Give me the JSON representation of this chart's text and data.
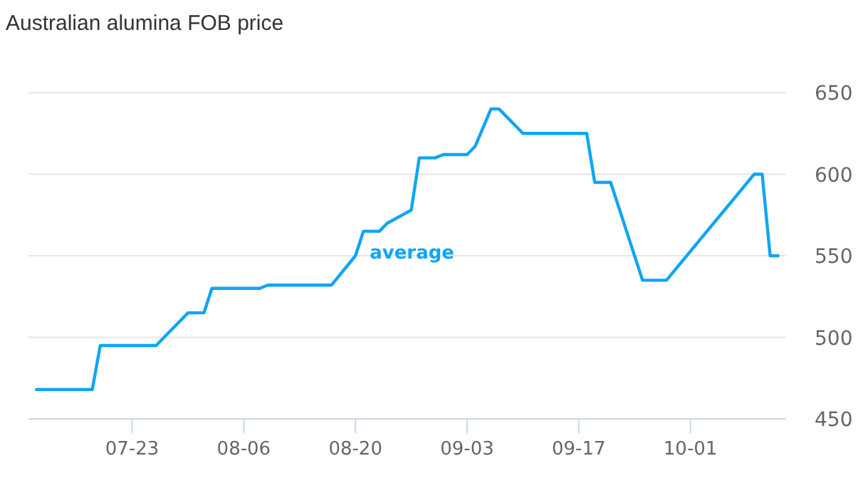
{
  "chart_data": {
    "type": "line",
    "title": "Australian alumina FOB price",
    "x": [
      "--07-11",
      "--07-18",
      "--07-19",
      "--07-26",
      "--07-30",
      "--08-01",
      "--08-02",
      "--08-08",
      "--08-09",
      "--08-17",
      "--08-20",
      "--08-21",
      "--08-23",
      "--08-24",
      "--08-27",
      "--08-28",
      "--08-30",
      "--08-31",
      "--09-03",
      "--09-04",
      "--09-06",
      "--09-07",
      "--09-10",
      "--09-18",
      "--09-19",
      "--09-21",
      "--09-25",
      "--09-28",
      "--10-09",
      "--10-10",
      "--10-11",
      "--10-12"
    ],
    "series": [
      {
        "name": "average",
        "color": "#0fa5f5",
        "values": [
          468,
          468,
          495,
          495,
          515,
          515,
          530,
          530,
          532,
          532,
          550,
          565,
          565,
          570,
          578,
          610,
          610,
          612,
          612,
          617,
          640,
          640,
          625,
          625,
          595,
          595,
          535,
          535,
          600,
          600,
          550,
          550
        ]
      }
    ],
    "xlim": [
      "--07-10",
      "--10-13"
    ],
    "xticks": [
      {
        "value": "--07-23",
        "label": "07-23"
      },
      {
        "value": "--08-06",
        "label": "08-06"
      },
      {
        "value": "--08-20",
        "label": "08-20"
      },
      {
        "value": "--09-03",
        "label": "09-03"
      },
      {
        "value": "--09-17",
        "label": "09-17"
      },
      {
        "value": "--10-01",
        "label": "10-01"
      }
    ],
    "ylim": [
      450,
      650
    ],
    "yticks": [
      450,
      500,
      550,
      600,
      650
    ],
    "grid": "y",
    "marker": "none",
    "line_style": "solid",
    "legend": false
  }
}
